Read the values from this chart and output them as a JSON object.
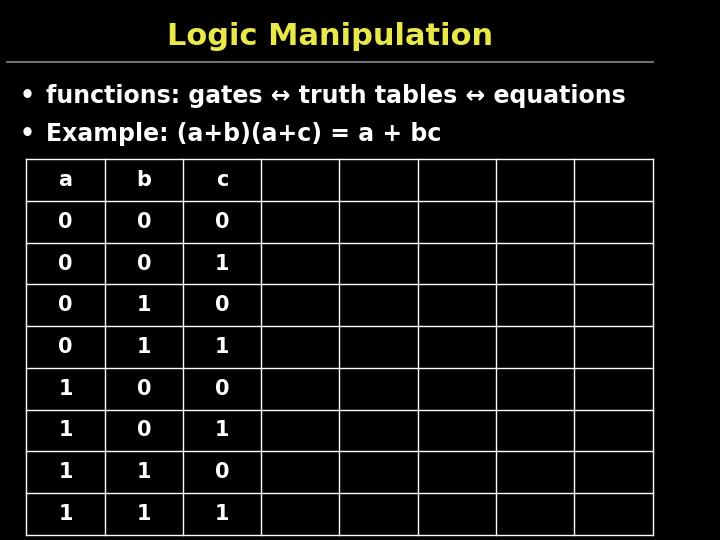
{
  "title": "Logic Manipulation",
  "title_color": "#e8e84a",
  "title_fontsize": 22,
  "background_color": "#000000",
  "bullet_color": "#ffffff",
  "bullet_fontsize": 17,
  "bullet1": "functions: gates ↔ truth tables ↔ equations",
  "bullet2": "Example: (a+b)(a+c) = a + bc",
  "bullet_marker": "•",
  "line_color": "#888888",
  "table_header": [
    "a",
    "b",
    "c",
    "",
    "",
    "",
    "",
    ""
  ],
  "table_rows": [
    [
      "0",
      "0",
      "0",
      "",
      "",
      "",
      "",
      ""
    ],
    [
      "0",
      "0",
      "1",
      "",
      "",
      "",
      "",
      ""
    ],
    [
      "0",
      "1",
      "0",
      "",
      "",
      "",
      "",
      ""
    ],
    [
      "0",
      "1",
      "1",
      "",
      "",
      "",
      "",
      ""
    ],
    [
      "1",
      "0",
      "0",
      "",
      "",
      "",
      "",
      ""
    ],
    [
      "1",
      "0",
      "1",
      "",
      "",
      "",
      "",
      ""
    ],
    [
      "1",
      "1",
      "0",
      "",
      "",
      "",
      "",
      ""
    ],
    [
      "1",
      "1",
      "1",
      "",
      "",
      "",
      "",
      ""
    ]
  ],
  "num_cols": 8,
  "num_rows": 9,
  "table_text_color": "#ffffff",
  "table_bg_color": "#000000",
  "table_border_color": "#ffffff",
  "table_font_size": 15,
  "table_header_font_size": 15
}
